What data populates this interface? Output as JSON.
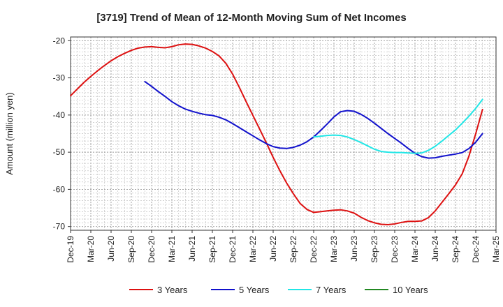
{
  "chart_data": {
    "type": "line",
    "title": "[3719]  Trend of Mean of 12-Month Moving Sum of Net Incomes",
    "ylabel": "Amount (million yen)",
    "xlabel": "",
    "ylim": [
      -71,
      -19
    ],
    "yticks": [
      -20,
      -30,
      -40,
      -50,
      -60,
      -70
    ],
    "xticks": [
      "Dec-19",
      "Mar-20",
      "Jun-20",
      "Sep-20",
      "Dec-20",
      "Mar-21",
      "Jun-21",
      "Sep-21",
      "Dec-21",
      "Mar-22",
      "Jun-22",
      "Sep-22",
      "Dec-22",
      "Mar-23",
      "Jun-23",
      "Sep-23",
      "Dec-23",
      "Mar-24",
      "Jun-24",
      "Sep-24",
      "Dec-24",
      "Mar-25"
    ],
    "x_start": "2019-12",
    "x_end": "2025-03",
    "grid": true,
    "legend_position": "bottom",
    "series": [
      {
        "name": "3 Years",
        "color": "#dd1111",
        "points": [
          [
            "2019-12",
            -34.8
          ],
          [
            "2020-01",
            -33.0
          ],
          [
            "2020-02",
            -31.2
          ],
          [
            "2020-03",
            -29.6
          ],
          [
            "2020-04",
            -28.1
          ],
          [
            "2020-05",
            -26.7
          ],
          [
            "2020-06",
            -25.4
          ],
          [
            "2020-07",
            -24.3
          ],
          [
            "2020-08",
            -23.4
          ],
          [
            "2020-09",
            -22.6
          ],
          [
            "2020-10",
            -22.0
          ],
          [
            "2020-11",
            -21.7
          ],
          [
            "2020-12",
            -21.6
          ],
          [
            "2021-01",
            -21.8
          ],
          [
            "2021-02",
            -21.9
          ],
          [
            "2021-03",
            -21.6
          ],
          [
            "2021-04",
            -21.1
          ],
          [
            "2021-05",
            -20.9
          ],
          [
            "2021-06",
            -21.0
          ],
          [
            "2021-07",
            -21.4
          ],
          [
            "2021-08",
            -22.0
          ],
          [
            "2021-09",
            -22.9
          ],
          [
            "2021-10",
            -24.1
          ],
          [
            "2021-11",
            -26.1
          ],
          [
            "2021-12",
            -29.0
          ],
          [
            "2022-01",
            -32.6
          ],
          [
            "2022-02",
            -36.4
          ],
          [
            "2022-03",
            -40.1
          ],
          [
            "2022-04",
            -43.8
          ],
          [
            "2022-05",
            -47.5
          ],
          [
            "2022-06",
            -51.4
          ],
          [
            "2022-07",
            -55.0
          ],
          [
            "2022-08",
            -58.3
          ],
          [
            "2022-09",
            -61.2
          ],
          [
            "2022-10",
            -63.8
          ],
          [
            "2022-11",
            -65.4
          ],
          [
            "2022-12",
            -66.2
          ],
          [
            "2023-01",
            -66.0
          ],
          [
            "2023-02",
            -65.8
          ],
          [
            "2023-03",
            -65.6
          ],
          [
            "2023-04",
            -65.5
          ],
          [
            "2023-05",
            -65.8
          ],
          [
            "2023-06",
            -66.4
          ],
          [
            "2023-07",
            -67.5
          ],
          [
            "2023-08",
            -68.4
          ],
          [
            "2023-09",
            -69.0
          ],
          [
            "2023-10",
            -69.4
          ],
          [
            "2023-11",
            -69.5
          ],
          [
            "2023-12",
            -69.3
          ],
          [
            "2024-01",
            -68.9
          ],
          [
            "2024-02",
            -68.6
          ],
          [
            "2024-03",
            -68.6
          ],
          [
            "2024-04",
            -68.5
          ],
          [
            "2024-05",
            -67.6
          ],
          [
            "2024-06",
            -65.8
          ],
          [
            "2024-07",
            -63.5
          ],
          [
            "2024-08",
            -61.2
          ],
          [
            "2024-09",
            -58.8
          ],
          [
            "2024-10",
            -55.8
          ],
          [
            "2024-11",
            -51.0
          ],
          [
            "2024-12",
            -45.0
          ],
          [
            "2025-01",
            -38.5
          ]
        ]
      },
      {
        "name": "5 Years",
        "color": "#1111cc",
        "points": [
          [
            "2020-11",
            -31.0
          ],
          [
            "2020-12",
            -32.3
          ],
          [
            "2021-01",
            -33.7
          ],
          [
            "2021-02",
            -35.0
          ],
          [
            "2021-03",
            -36.4
          ],
          [
            "2021-04",
            -37.5
          ],
          [
            "2021-05",
            -38.4
          ],
          [
            "2021-06",
            -39.0
          ],
          [
            "2021-07",
            -39.5
          ],
          [
            "2021-08",
            -39.9
          ],
          [
            "2021-09",
            -40.1
          ],
          [
            "2021-10",
            -40.6
          ],
          [
            "2021-11",
            -41.3
          ],
          [
            "2021-12",
            -42.3
          ],
          [
            "2022-01",
            -43.4
          ],
          [
            "2022-02",
            -44.5
          ],
          [
            "2022-03",
            -45.6
          ],
          [
            "2022-04",
            -46.7
          ],
          [
            "2022-05",
            -47.7
          ],
          [
            "2022-06",
            -48.5
          ],
          [
            "2022-07",
            -48.9
          ],
          [
            "2022-08",
            -49.0
          ],
          [
            "2022-09",
            -48.7
          ],
          [
            "2022-10",
            -48.1
          ],
          [
            "2022-11",
            -47.2
          ],
          [
            "2022-12",
            -45.9
          ],
          [
            "2023-01",
            -44.2
          ],
          [
            "2023-02",
            -42.4
          ],
          [
            "2023-03",
            -40.5
          ],
          [
            "2023-04",
            -39.1
          ],
          [
            "2023-05",
            -38.8
          ],
          [
            "2023-06",
            -39.0
          ],
          [
            "2023-07",
            -39.8
          ],
          [
            "2023-08",
            -40.9
          ],
          [
            "2023-09",
            -42.2
          ],
          [
            "2023-10",
            -43.6
          ],
          [
            "2023-11",
            -45.0
          ],
          [
            "2023-12",
            -46.3
          ],
          [
            "2024-01",
            -47.6
          ],
          [
            "2024-02",
            -49.0
          ],
          [
            "2024-03",
            -50.3
          ],
          [
            "2024-04",
            -51.2
          ],
          [
            "2024-05",
            -51.6
          ],
          [
            "2024-06",
            -51.5
          ],
          [
            "2024-07",
            -51.1
          ],
          [
            "2024-08",
            -50.8
          ],
          [
            "2024-09",
            -50.5
          ],
          [
            "2024-10",
            -50.1
          ],
          [
            "2024-11",
            -49.0
          ],
          [
            "2024-12",
            -47.3
          ],
          [
            "2025-01",
            -45.0
          ]
        ]
      },
      {
        "name": "7 Years",
        "color": "#22e6e6",
        "points": [
          [
            "2022-12",
            -45.9
          ],
          [
            "2023-01",
            -45.7
          ],
          [
            "2023-02",
            -45.5
          ],
          [
            "2023-03",
            -45.4
          ],
          [
            "2023-04",
            -45.5
          ],
          [
            "2023-05",
            -45.9
          ],
          [
            "2023-06",
            -46.6
          ],
          [
            "2023-07",
            -47.4
          ],
          [
            "2023-08",
            -48.3
          ],
          [
            "2023-09",
            -49.2
          ],
          [
            "2023-10",
            -49.8
          ],
          [
            "2023-11",
            -50.0
          ],
          [
            "2023-12",
            -50.1
          ],
          [
            "2024-01",
            -50.1
          ],
          [
            "2024-02",
            -50.2
          ],
          [
            "2024-03",
            -50.3
          ],
          [
            "2024-04",
            -50.2
          ],
          [
            "2024-05",
            -49.5
          ],
          [
            "2024-06",
            -48.4
          ],
          [
            "2024-07",
            -47.0
          ],
          [
            "2024-08",
            -45.5
          ],
          [
            "2024-09",
            -44.0
          ],
          [
            "2024-10",
            -42.2
          ],
          [
            "2024-11",
            -40.3
          ],
          [
            "2024-12",
            -38.2
          ],
          [
            "2025-01",
            -35.8
          ]
        ]
      },
      {
        "name": "10 Years",
        "color": "#228822",
        "points": []
      }
    ]
  }
}
